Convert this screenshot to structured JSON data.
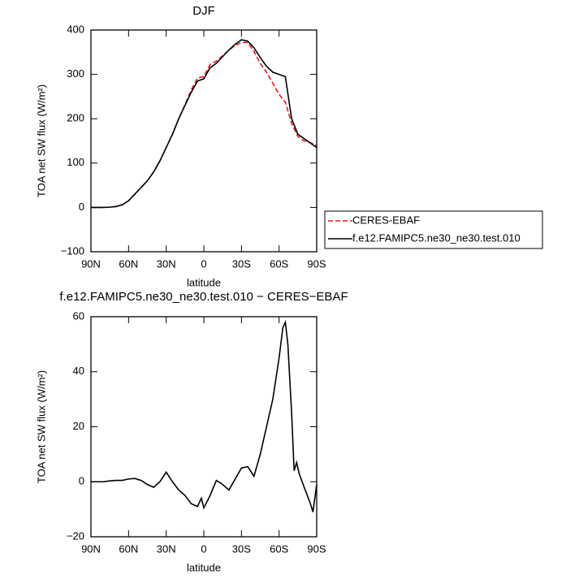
{
  "chart_data": [
    {
      "type": "line",
      "title": "DJF",
      "xlabel": "latitude",
      "ylabel": "TOA net SW flux (W/m²)",
      "x": [
        90,
        85,
        80,
        75,
        70,
        65,
        60,
        55,
        50,
        45,
        40,
        35,
        30,
        25,
        20,
        15,
        10,
        5,
        0,
        -5,
        -10,
        -15,
        -20,
        -25,
        -30,
        -35,
        -40,
        -45,
        -50,
        -55,
        -60,
        -65,
        -70,
        -75,
        -80,
        -85,
        -90
      ],
      "series": [
        {
          "name": "CERES-EBAF",
          "color": "#e8191c",
          "linestyle": "dashed",
          "values": [
            0,
            0,
            0,
            0.5,
            2,
            6,
            15,
            30,
            45,
            60,
            80,
            105,
            135,
            165,
            200,
            232,
            265,
            292,
            295,
            322,
            330,
            342,
            355,
            365,
            372,
            372,
            352,
            325,
            305,
            280,
            255,
            237,
            190,
            160,
            150,
            146,
            140
          ]
        },
        {
          "name": "f.e12.FAMIPC5.ne30_ne30.test.010",
          "color": "#000000",
          "linestyle": "solid",
          "values": [
            0,
            0,
            0,
            0.5,
            2,
            6,
            15,
            30,
            45,
            60,
            80,
            105,
            135,
            165,
            200,
            230,
            260,
            285,
            290,
            315,
            325,
            340,
            355,
            368,
            378,
            375,
            360,
            338,
            318,
            305,
            300,
            295,
            200,
            165,
            155,
            145,
            135
          ]
        }
      ],
      "xlim": [
        90,
        -90
      ],
      "ylim": [
        -100,
        400
      ],
      "xticks": [
        {
          "value": 90,
          "label": "90N"
        },
        {
          "value": 60,
          "label": "60N"
        },
        {
          "value": 30,
          "label": "30N"
        },
        0,
        {
          "value": -30,
          "label": "30S"
        },
        {
          "value": -60,
          "label": "60S"
        },
        {
          "value": -90,
          "label": "90S"
        }
      ],
      "yticks": [
        {
          "value": -100,
          "label": "−100"
        },
        0,
        100,
        200,
        300,
        400
      ],
      "legend": "right"
    },
    {
      "type": "line",
      "title": "f.e12.FAMIPC5.ne30_ne30.test.010 − CERES−EBAF",
      "xlabel": "latitude",
      "ylabel": "TOA net SW flux (W/m²)",
      "x": [
        90,
        85,
        80,
        75,
        70,
        65,
        60,
        55,
        50,
        45,
        40,
        35,
        30,
        25,
        20,
        15,
        10,
        5,
        2,
        0,
        -5,
        -10,
        -15,
        -20,
        -25,
        -30,
        -35,
        -40,
        -45,
        -50,
        -55,
        -60,
        -63,
        -65,
        -67,
        -70,
        -72,
        -74,
        -76,
        -80,
        -85,
        -87,
        -90
      ],
      "series": [
        {
          "color": "#000000",
          "linestyle": "solid",
          "values": [
            0,
            0,
            0,
            0.3,
            0.5,
            0.5,
            1,
            1.2,
            0.5,
            -1,
            -2,
            0,
            3.5,
            0,
            -3,
            -5,
            -8,
            -9,
            -6,
            -9.5,
            -5,
            0.5,
            -1,
            -3,
            1,
            5,
            5.5,
            2,
            10,
            20,
            30,
            45,
            56,
            58,
            50,
            25,
            4,
            7,
            3,
            -2,
            -8,
            -11,
            -1
          ]
        }
      ],
      "xlim": [
        90,
        -90
      ],
      "ylim": [
        -20,
        60
      ],
      "xticks": [
        {
          "value": 90,
          "label": "90N"
        },
        {
          "value": 60,
          "label": "60N"
        },
        {
          "value": 30,
          "label": "30N"
        },
        0,
        {
          "value": -30,
          "label": "30S"
        },
        {
          "value": -60,
          "label": "60S"
        },
        {
          "value": -90,
          "label": "90S"
        }
      ],
      "yticks": [
        {
          "value": -20,
          "label": "−20"
        },
        0,
        20,
        40,
        60
      ]
    }
  ]
}
